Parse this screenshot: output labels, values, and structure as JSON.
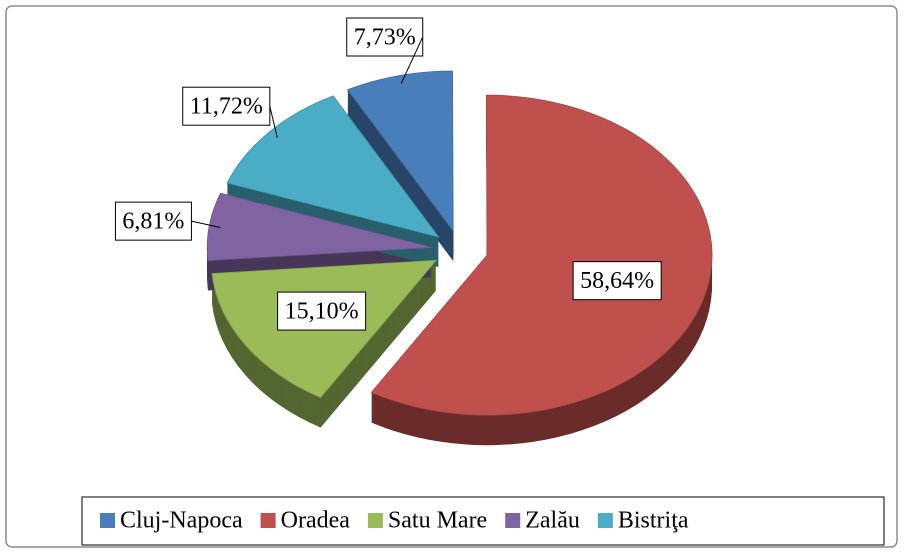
{
  "chart_data": {
    "type": "pie",
    "style": "3d-exploded",
    "categories": [
      "Cluj-Napoca",
      "Oradea",
      "Satu Mare",
      "Zalău",
      "Bistriţa"
    ],
    "values": [
      7.73,
      58.64,
      15.1,
      6.81,
      11.72
    ],
    "value_labels": [
      "7,73%",
      "58,64%",
      "15,10%",
      "6,81%",
      "11,72%"
    ],
    "colors": [
      "#4a7ebb",
      "#c0504d",
      "#9bbb59",
      "#8064a2",
      "#4bacc6"
    ],
    "legend": "bottom"
  }
}
